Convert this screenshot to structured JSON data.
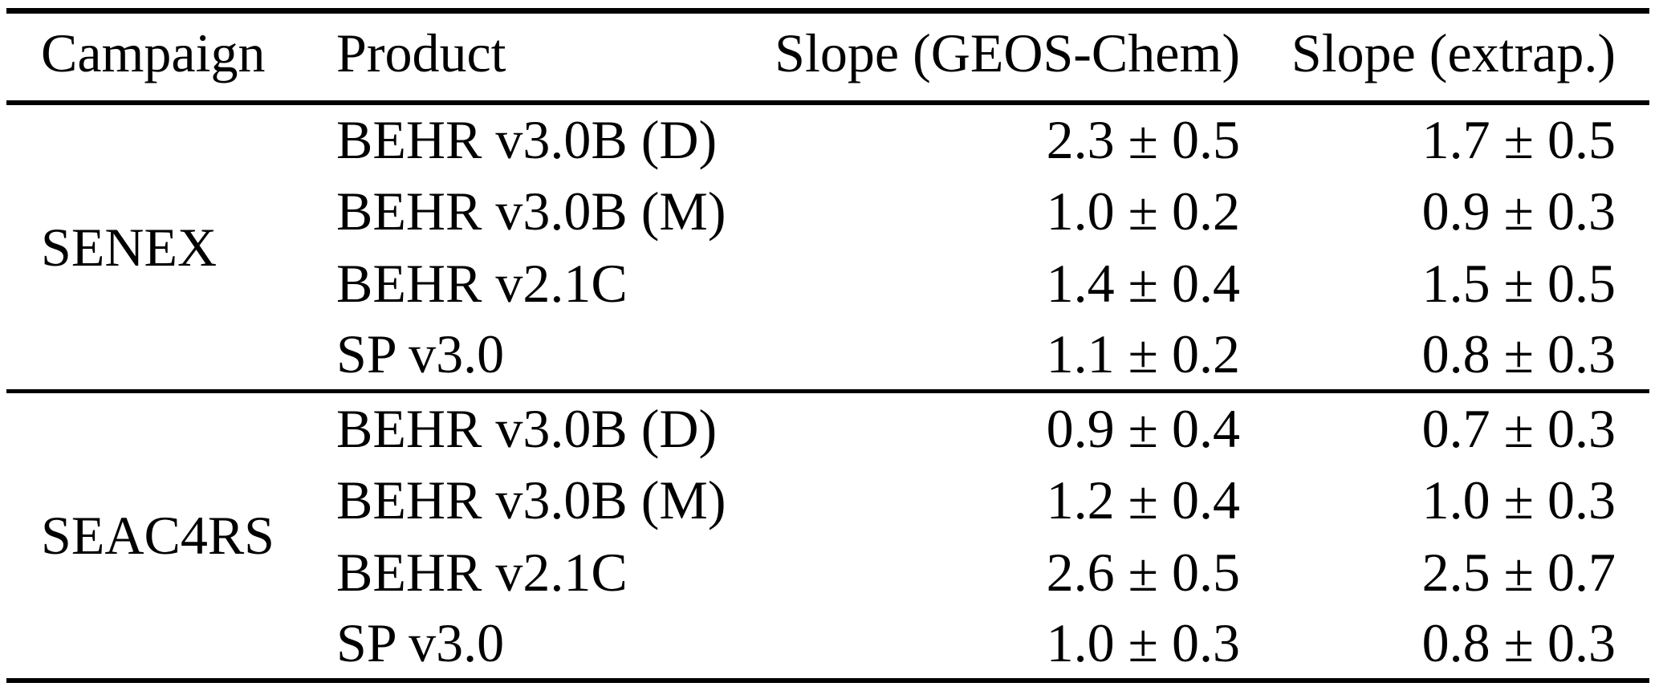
{
  "table": {
    "columns": {
      "campaign": "Campaign",
      "product": "Product",
      "slope_geos_chem": "Slope (GEOS-Chem)",
      "slope_extrap": "Slope (extrap.)"
    },
    "groups": [
      {
        "campaign": "SENEX",
        "rows": [
          {
            "product": "BEHR v3.0B (D)",
            "slope_geos_chem": "2.3 ± 0.5",
            "slope_extrap": "1.7 ± 0.5"
          },
          {
            "product": "BEHR v3.0B (M)",
            "slope_geos_chem": "1.0 ± 0.2",
            "slope_extrap": "0.9 ± 0.3"
          },
          {
            "product": "BEHR v2.1C",
            "slope_geos_chem": "1.4 ± 0.4",
            "slope_extrap": "1.5 ± 0.5"
          },
          {
            "product": "SP v3.0",
            "slope_geos_chem": "1.1 ± 0.2",
            "slope_extrap": "0.8 ± 0.3"
          }
        ]
      },
      {
        "campaign": "SEAC4RS",
        "rows": [
          {
            "product": "BEHR v3.0B (D)",
            "slope_geos_chem": "0.9 ± 0.4",
            "slope_extrap": "0.7 ± 0.3"
          },
          {
            "product": "BEHR v3.0B (M)",
            "slope_geos_chem": "1.2 ± 0.4",
            "slope_extrap": "1.0 ± 0.3"
          },
          {
            "product": "BEHR v2.1C",
            "slope_geos_chem": "2.6 ± 0.5",
            "slope_extrap": "2.5 ± 0.7"
          },
          {
            "product": "SP v3.0",
            "slope_geos_chem": "1.0 ± 0.3",
            "slope_extrap": "0.8 ± 0.3"
          }
        ]
      }
    ]
  },
  "colors": {
    "text": "#000000",
    "background": "#ffffff",
    "rule": "#000000"
  }
}
